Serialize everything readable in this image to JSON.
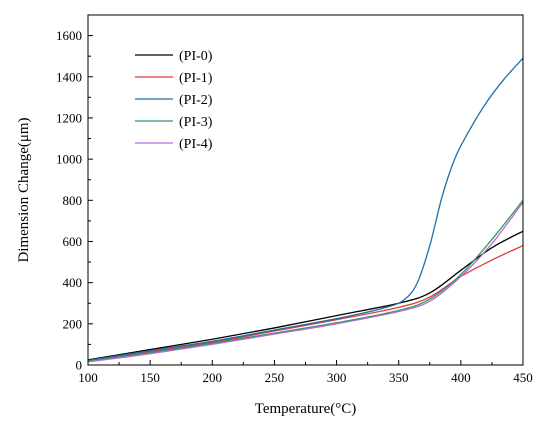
{
  "chart_data": {
    "type": "line",
    "xlabel": "Temperature(°C)",
    "ylabel": "Dimension Change(μm)",
    "xlim": [
      100,
      450
    ],
    "ylim": [
      0,
      1700
    ],
    "xticks": [
      100,
      150,
      200,
      250,
      300,
      350,
      400,
      450
    ],
    "yticks": [
      0,
      200,
      400,
      600,
      800,
      1000,
      1200,
      1400,
      1600
    ],
    "grid": false,
    "legend_position": "top-left",
    "series": [
      {
        "name": "(PI-0)",
        "color": "#000000",
        "x": [
          100,
          150,
          200,
          250,
          300,
          350,
          375,
          400,
          425,
          450
        ],
        "y": [
          25,
          75,
          125,
          180,
          240,
          300,
          350,
          460,
          570,
          650
        ]
      },
      {
        "name": "(PI-1)",
        "color": "#e4393a",
        "x": [
          100,
          150,
          200,
          250,
          300,
          350,
          375,
          400,
          425,
          450
        ],
        "y": [
          20,
          65,
          110,
          165,
          220,
          280,
          330,
          430,
          510,
          580
        ]
      },
      {
        "name": "(PI-2)",
        "color": "#1f6fa8",
        "x": [
          100,
          150,
          200,
          250,
          300,
          340,
          355,
          365,
          375,
          385,
          395,
          405,
          420,
          435,
          450
        ],
        "y": [
          22,
          70,
          115,
          170,
          225,
          280,
          320,
          400,
          580,
          820,
          1000,
          1120,
          1270,
          1390,
          1490
        ]
      },
      {
        "name": "(PI-3)",
        "color": "#2e9a5c",
        "x": [
          100,
          150,
          200,
          250,
          300,
          350,
          375,
          400,
          425,
          450
        ],
        "y": [
          18,
          60,
          105,
          155,
          205,
          265,
          320,
          440,
          610,
          800
        ]
      },
      {
        "name": "(PI-4)",
        "color": "#b36ad8",
        "x": [
          100,
          150,
          200,
          250,
          300,
          350,
          375,
          400,
          425,
          450
        ],
        "y": [
          15,
          55,
          100,
          150,
          200,
          260,
          310,
          430,
          590,
          790
        ]
      }
    ]
  }
}
